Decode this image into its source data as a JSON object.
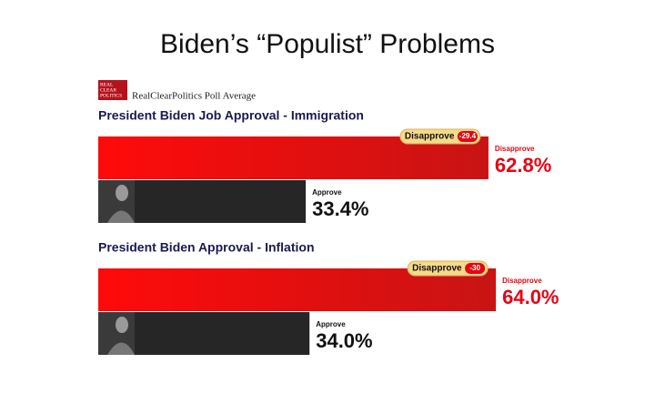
{
  "title": "Biden’s “Populist” Problems",
  "logo": [
    "REAL",
    "CLEAR",
    "POLITICS"
  ],
  "source": "RealClearPolitics Poll Average",
  "chart_data": [
    {
      "type": "bar",
      "title": "President Biden Job Approval - Immigration",
      "categories": [
        "Disapprove",
        "Approve"
      ],
      "values": [
        62.8,
        33.4
      ],
      "value_labels": [
        "62.8%",
        "33.4%"
      ],
      "colors": [
        "#e30613",
        "#262626"
      ],
      "spread": -29.4
    },
    {
      "type": "bar",
      "title": "President Biden Approval - Inflation",
      "categories": [
        "Disapprove",
        "Approve"
      ],
      "values": [
        64.0,
        34.0
      ],
      "value_labels": [
        "64.0%",
        "34.0%"
      ],
      "colors": [
        "#e30613",
        "#262626"
      ],
      "spread": -30.0
    }
  ]
}
